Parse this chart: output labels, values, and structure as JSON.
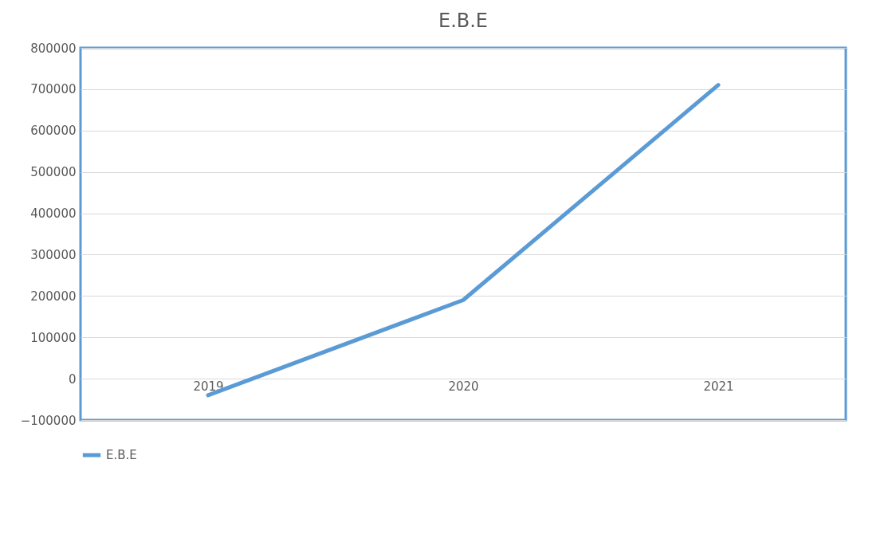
{
  "chart_data": {
    "type": "line",
    "title": "E.B.E",
    "categories": [
      "2019",
      "2020",
      "2021"
    ],
    "series": [
      {
        "name": "E.B.E",
        "color": "#5b9bd5",
        "values": [
          -40000,
          190000,
          710000
        ]
      }
    ],
    "ylim": [
      -100000,
      800000
    ],
    "yticks": [
      -100000,
      0,
      100000,
      200000,
      300000,
      400000,
      500000,
      600000,
      700000,
      800000
    ],
    "grid": "y",
    "legend": "bottom",
    "marker": "none",
    "line_style": "solid"
  }
}
